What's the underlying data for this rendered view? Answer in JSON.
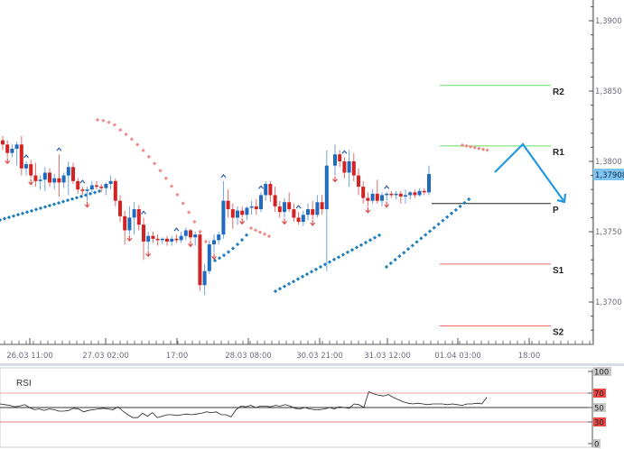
{
  "chart_data": [
    {
      "type": "candlestick",
      "title": "",
      "instrument_price_last": "1,37908",
      "y_axis": {
        "ticks": [
          "1,3900",
          "1,3850",
          "1,3800",
          "1,3750",
          "1,3700"
        ],
        "tick_values": [
          1.39,
          1.385,
          1.38,
          1.375,
          1.37
        ],
        "range": [
          1.367,
          1.3925
        ]
      },
      "x_axis": {
        "ticks": [
          "26.03 11:00",
          "27.03 02:00",
          "17:00",
          "28.03 08:00",
          "30.03 21:00",
          "31.03 12:00",
          "01.04 03:00",
          "18:00"
        ],
        "tick_x": [
          33,
          117,
          196,
          275,
          354,
          429,
          507,
          586
        ]
      },
      "pivot_levels": [
        {
          "name": "R2",
          "value": 1.3854,
          "color": "#66dd66"
        },
        {
          "name": "R1",
          "value": 1.3811,
          "color": "#66dd66"
        },
        {
          "name": "P",
          "value": 1.377,
          "color": "#222222"
        },
        {
          "name": "S1",
          "value": 1.3727,
          "color": "#ee6666"
        },
        {
          "name": "S2",
          "value": 1.3683,
          "color": "#ee6666"
        }
      ],
      "forecast_arrow": {
        "points": [
          [
            548,
            191
          ],
          [
            579,
            160
          ],
          [
            625,
            224
          ]
        ],
        "color": "#2299dd"
      },
      "colors": {
        "bull": "#1f6bbf",
        "bear": "#d42222",
        "sar_up": "#1e7fbf",
        "sar_down": "#f08a8a"
      },
      "candles": [
        [
          1.3815,
          1.3818,
          1.3808,
          1.3812
        ],
        [
          1.3812,
          1.3815,
          1.3803,
          1.3806
        ],
        [
          1.3806,
          1.3812,
          1.3803,
          1.3809
        ],
        [
          1.3809,
          1.3814,
          1.3797,
          1.3812
        ],
        [
          1.3812,
          1.3818,
          1.379,
          1.3795
        ],
        [
          1.3795,
          1.38,
          1.379,
          1.3798
        ],
        [
          1.3798,
          1.3801,
          1.3788,
          1.379
        ],
        [
          1.379,
          1.3799,
          1.3782,
          1.3786
        ],
        [
          1.3786,
          1.379,
          1.378,
          1.3787
        ],
        [
          1.3787,
          1.3796,
          1.3779,
          1.3792
        ],
        [
          1.3792,
          1.3795,
          1.3782,
          1.3785
        ],
        [
          1.3785,
          1.3791,
          1.378,
          1.3788
        ],
        [
          1.3788,
          1.3805,
          1.3775,
          1.3785
        ],
        [
          1.3785,
          1.3792,
          1.3781,
          1.379
        ],
        [
          1.379,
          1.38,
          1.3776,
          1.3796
        ],
        [
          1.3796,
          1.3799,
          1.3784,
          1.3786
        ],
        [
          1.3786,
          1.3788,
          1.3777,
          1.378
        ],
        [
          1.378,
          1.3782,
          1.3776,
          1.3779
        ],
        [
          1.3779,
          1.3782,
          1.3772,
          1.378
        ],
        [
          1.378,
          1.3786,
          1.3778,
          1.3783
        ],
        [
          1.3783,
          1.3786,
          1.378,
          1.3782
        ],
        [
          1.3782,
          1.3784,
          1.3778,
          1.3781
        ],
        [
          1.3781,
          1.3785,
          1.3776,
          1.3784
        ],
        [
          1.3784,
          1.379,
          1.378,
          1.3786
        ],
        [
          1.3786,
          1.3788,
          1.3768,
          1.3772
        ],
        [
          1.3772,
          1.3776,
          1.3757,
          1.3761
        ],
        [
          1.3761,
          1.3765,
          1.3741,
          1.3751
        ],
        [
          1.3751,
          1.3768,
          1.3748,
          1.376
        ],
        [
          1.376,
          1.3771,
          1.3748,
          1.3766
        ],
        [
          1.3766,
          1.3769,
          1.3751,
          1.3755
        ],
        [
          1.3755,
          1.376,
          1.373,
          1.3743
        ],
        [
          1.3743,
          1.375,
          1.3737,
          1.3747
        ],
        [
          1.3747,
          1.375,
          1.3742,
          1.3745
        ],
        [
          1.3745,
          1.3748,
          1.374,
          1.3744
        ],
        [
          1.3744,
          1.3746,
          1.3741,
          1.3745
        ],
        [
          1.3745,
          1.3747,
          1.374,
          1.3743
        ],
        [
          1.3743,
          1.3747,
          1.374,
          1.3745
        ],
        [
          1.3745,
          1.3748,
          1.3742,
          1.3744
        ],
        [
          1.3744,
          1.375,
          1.3742,
          1.3747
        ],
        [
          1.3747,
          1.3753,
          1.3744,
          1.3751
        ],
        [
          1.3751,
          1.3752,
          1.3744,
          1.3746
        ],
        [
          1.3746,
          1.375,
          1.374,
          1.3748
        ],
        [
          1.3748,
          1.375,
          1.3708,
          1.3712
        ],
        [
          1.3712,
          1.3727,
          1.3705,
          1.3722
        ],
        [
          1.3722,
          1.3744,
          1.372,
          1.3741
        ],
        [
          1.3741,
          1.3748,
          1.3735,
          1.3744
        ],
        [
          1.3744,
          1.375,
          1.3741,
          1.3748
        ],
        [
          1.3748,
          1.3786,
          1.3745,
          1.3772
        ],
        [
          1.3772,
          1.378,
          1.376,
          1.3766
        ],
        [
          1.3766,
          1.377,
          1.3752,
          1.376
        ],
        [
          1.376,
          1.3768,
          1.3755,
          1.3765
        ],
        [
          1.3765,
          1.3768,
          1.376,
          1.3762
        ],
        [
          1.3762,
          1.3768,
          1.3758,
          1.3767
        ],
        [
          1.3767,
          1.3772,
          1.3762,
          1.3768
        ],
        [
          1.3768,
          1.3773,
          1.3762,
          1.3766
        ],
        [
          1.3766,
          1.3778,
          1.3764,
          1.3776
        ],
        [
          1.3776,
          1.3786,
          1.3772,
          1.3784
        ],
        [
          1.3784,
          1.3786,
          1.3771,
          1.3776
        ],
        [
          1.3776,
          1.3782,
          1.3764,
          1.3768
        ],
        [
          1.3768,
          1.3772,
          1.376,
          1.3764
        ],
        [
          1.3764,
          1.3774,
          1.376,
          1.3771
        ],
        [
          1.3771,
          1.3778,
          1.3764,
          1.3766
        ],
        [
          1.3766,
          1.377,
          1.3757,
          1.376
        ],
        [
          1.376,
          1.3764,
          1.3755,
          1.3757
        ],
        [
          1.3757,
          1.3765,
          1.3754,
          1.3762
        ],
        [
          1.3762,
          1.377,
          1.3758,
          1.3766
        ],
        [
          1.3766,
          1.3772,
          1.3759,
          1.3762
        ],
        [
          1.3762,
          1.3776,
          1.376,
          1.3771
        ],
        [
          1.3771,
          1.3776,
          1.3762,
          1.3766
        ],
        [
          1.3766,
          1.3808,
          1.3722,
          1.3797
        ],
        [
          1.3797,
          1.3812,
          1.379,
          1.3805
        ],
        [
          1.3805,
          1.3808,
          1.3796,
          1.38
        ],
        [
          1.38,
          1.3803,
          1.3788,
          1.3792
        ],
        [
          1.3792,
          1.3808,
          1.3782,
          1.38
        ],
        [
          1.38,
          1.3806,
          1.3786,
          1.379
        ],
        [
          1.379,
          1.3795,
          1.3776,
          1.3782
        ],
        [
          1.3782,
          1.3786,
          1.377,
          1.3774
        ],
        [
          1.3774,
          1.3778,
          1.3768,
          1.3772
        ],
        [
          1.3772,
          1.378,
          1.377,
          1.3777
        ],
        [
          1.3777,
          1.3787,
          1.377,
          1.3772
        ],
        [
          1.3772,
          1.3778,
          1.3768,
          1.3776
        ],
        [
          1.3776,
          1.3778,
          1.3772,
          1.3777
        ],
        [
          1.3777,
          1.3779,
          1.3774,
          1.3776
        ],
        [
          1.3776,
          1.3779,
          1.3773,
          1.3777
        ],
        [
          1.3777,
          1.3779,
          1.377,
          1.3775
        ],
        [
          1.3775,
          1.378,
          1.377,
          1.3776
        ],
        [
          1.3776,
          1.3779,
          1.3773,
          1.3778
        ],
        [
          1.3778,
          1.378,
          1.3774,
          1.3776
        ],
        [
          1.3776,
          1.3781,
          1.3775,
          1.3779
        ],
        [
          1.3779,
          1.3781,
          1.3776,
          1.3778
        ],
        [
          1.3778,
          1.3797,
          1.3776,
          1.3791
        ]
      ],
      "fractals_up": [
        5,
        12,
        17,
        30,
        37,
        47,
        55,
        63,
        72,
        81
      ],
      "fractals_down": [
        1,
        6,
        18,
        27,
        31,
        40,
        45,
        51,
        60,
        66,
        70,
        77,
        81
      ],
      "rsi": {
        "title": "RSI",
        "ticks": [
          "100",
          "70",
          "50",
          "30",
          "0"
        ],
        "tick_colors": [
          "#aaaaaa",
          "#ee4444",
          "#aaaaaa",
          "#ee4444",
          "#aaaaaa"
        ],
        "values": [
          55,
          54,
          53,
          51,
          52,
          54,
          50,
          47,
          48,
          46,
          48,
          47,
          45,
          45,
          46,
          49,
          48,
          44,
          46,
          47,
          48,
          49,
          48,
          47,
          51,
          45,
          40,
          36,
          36,
          42,
          38,
          43,
          36,
          38,
          40,
          40,
          39,
          40,
          41,
          40,
          41,
          42,
          44,
          43,
          44,
          40,
          40,
          37,
          47,
          52,
          51,
          53,
          50,
          52,
          52,
          51,
          53,
          52,
          54,
          52,
          49,
          48,
          50,
          48,
          47,
          47,
          48,
          50,
          48,
          51,
          50,
          49,
          55,
          54,
          50,
          72,
          69,
          67,
          66,
          68,
          64,
          61,
          58,
          56,
          55,
          56,
          55,
          54,
          55,
          55,
          55,
          54,
          55,
          54,
          53,
          55,
          55,
          56,
          55,
          64
        ]
      }
    }
  ]
}
